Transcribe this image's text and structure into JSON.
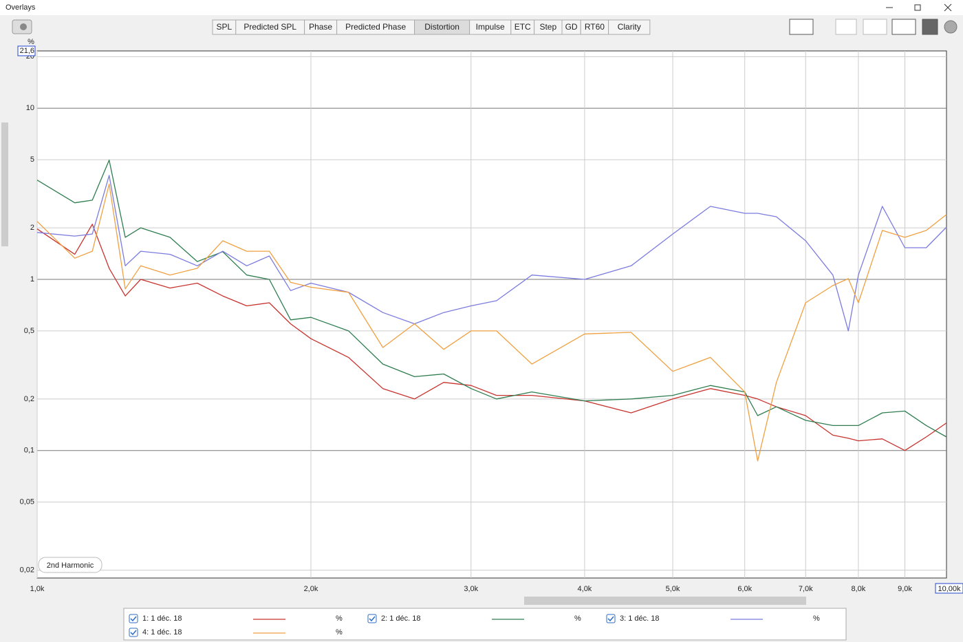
{
  "window": {
    "title": "Overlays"
  },
  "tabs": [
    {
      "label": "SPL"
    },
    {
      "label": "Predicted SPL"
    },
    {
      "label": "Phase"
    },
    {
      "label": "Predicted Phase"
    },
    {
      "label": "Distortion",
      "selected": true
    },
    {
      "label": "Impulse"
    },
    {
      "label": "ETC"
    },
    {
      "label": "Step"
    },
    {
      "label": "GD"
    },
    {
      "label": "RT60"
    },
    {
      "label": "Clarity"
    }
  ],
  "chart_data": {
    "type": "line",
    "y_unit": "%",
    "annotation": "2nd Harmonic",
    "x_log": true,
    "y_log": true,
    "grid": true,
    "xlim": [
      1000,
      10000
    ],
    "ylim": [
      0.018,
      21.6
    ],
    "xticks": [
      {
        "value": 1000,
        "label": "1,0k"
      },
      {
        "value": 2000,
        "label": "2,0k"
      },
      {
        "value": 3000,
        "label": "3,0k"
      },
      {
        "value": 4000,
        "label": "4,0k"
      },
      {
        "value": 5000,
        "label": "5,0k"
      },
      {
        "value": 6000,
        "label": "6,0k"
      },
      {
        "value": 7000,
        "label": "7,0k"
      },
      {
        "value": 8000,
        "label": "8,0k"
      },
      {
        "value": 9000,
        "label": "9,0k"
      },
      {
        "value": 10000,
        "label": "10,00k"
      }
    ],
    "yticks": [
      {
        "value": 0.02,
        "label": "0,02"
      },
      {
        "value": 0.05,
        "label": "0,05"
      },
      {
        "value": 0.1,
        "label": "0,1"
      },
      {
        "value": 0.2,
        "label": "0,2"
      },
      {
        "value": 0.5,
        "label": "0,5"
      },
      1,
      2,
      5,
      10,
      20,
      {
        "value": 21.6,
        "label": "21,6"
      }
    ],
    "x": [
      1000,
      1100,
      1150,
      1200,
      1250,
      1300,
      1400,
      1500,
      1600,
      1700,
      1800,
      1900,
      2000,
      2200,
      2400,
      2600,
      2800,
      3000,
      3200,
      3500,
      4000,
      4500,
      5000,
      5500,
      6000,
      6200,
      6500,
      7000,
      7500,
      7800,
      8000,
      8500,
      9000,
      9500,
      10000
    ],
    "series": [
      {
        "name": "1: 1 déc. 18",
        "unit": "%",
        "color": "#c8322d",
        "values": [
          1.97,
          1.4,
          2.1,
          1.16,
          0.8,
          1.0,
          0.89,
          0.95,
          0.8,
          0.7,
          0.73,
          0.55,
          0.45,
          0.35,
          0.23,
          0.2,
          0.25,
          0.24,
          0.21,
          0.21,
          0.195,
          0.166,
          0.2,
          0.23,
          0.21,
          0.2,
          0.18,
          0.16,
          0.123,
          0.118,
          0.114,
          0.117,
          0.1,
          0.12,
          0.145
        ]
      },
      {
        "name": "2: 1 déc. 18",
        "unit": "%",
        "color": "#2e7d4f",
        "values": [
          3.8,
          2.8,
          2.9,
          4.97,
          1.76,
          2.0,
          1.76,
          1.27,
          1.45,
          1.06,
          1.0,
          0.58,
          0.6,
          0.5,
          0.32,
          0.27,
          0.28,
          0.23,
          0.2,
          0.22,
          0.195,
          0.2,
          0.21,
          0.24,
          0.22,
          0.16,
          0.18,
          0.15,
          0.14,
          0.14,
          0.14,
          0.166,
          0.17,
          0.14,
          0.12
        ]
      },
      {
        "name": "3: 1 déc. 18",
        "unit": "%",
        "color": "#7b7be0",
        "values": [
          1.88,
          1.79,
          1.84,
          4.05,
          1.2,
          1.46,
          1.4,
          1.2,
          1.46,
          1.2,
          1.37,
          0.86,
          0.95,
          0.84,
          0.64,
          0.55,
          0.64,
          0.7,
          0.75,
          1.06,
          1.0,
          1.2,
          1.84,
          2.67,
          2.43,
          2.43,
          2.32,
          1.68,
          1.06,
          0.5,
          1.06,
          2.67,
          1.53,
          1.53,
          2.02
        ]
      },
      {
        "name": "4: 1 déc. 18",
        "unit": "%",
        "color": "#f0a040",
        "values": [
          2.18,
          1.33,
          1.46,
          3.6,
          0.88,
          1.2,
          1.06,
          1.16,
          1.68,
          1.46,
          1.46,
          0.96,
          0.9,
          0.84,
          0.4,
          0.55,
          0.39,
          0.5,
          0.5,
          0.32,
          0.48,
          0.49,
          0.29,
          0.35,
          0.22,
          0.087,
          0.25,
          0.73,
          0.92,
          1.01,
          0.73,
          1.93,
          1.76,
          1.93,
          2.39
        ]
      }
    ]
  }
}
